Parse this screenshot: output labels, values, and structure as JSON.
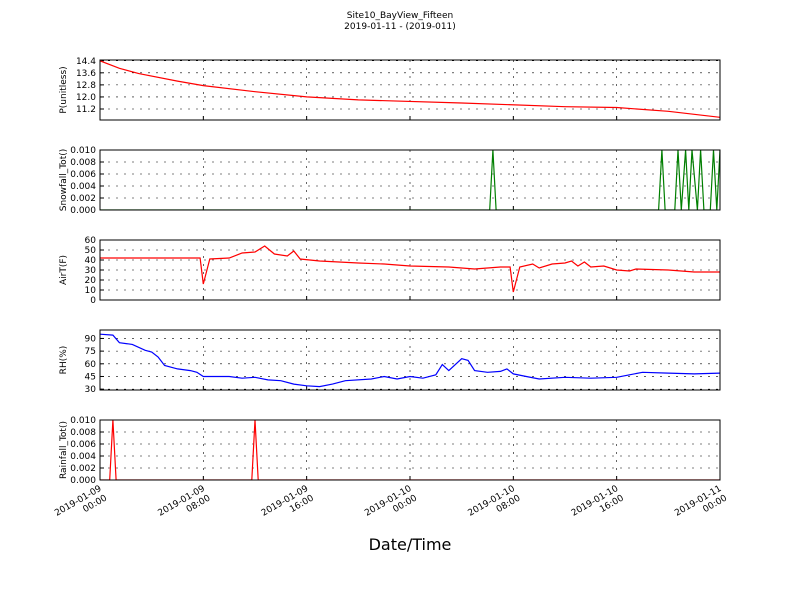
{
  "title": "Site10_BayView_Fifteen",
  "subtitle": "2019-01-11 - (2019-011)",
  "xlabel": "Date/Time",
  "xlim": [
    "2019-01-09 00:00",
    "2019-01-11 00:00"
  ],
  "xticks": [
    "2019-01-09 00:00",
    "2019-01-09 08:00",
    "2019-01-09 16:00",
    "2019-01-10 00:00",
    "2019-01-10 08:00",
    "2019-01-10 16:00",
    "2019-01-11 00:00"
  ],
  "chart_data": [
    {
      "type": "line",
      "ylabel": "P(unitless)",
      "color": "#ff0000",
      "ylim": [
        10.47,
        14.45
      ],
      "yticks": [
        11.2,
        {
          "value": 12,
          "label": "12.0"
        },
        12.8,
        13.6,
        14.4
      ],
      "x": [
        "2019-01-09 00:00",
        "2019-01-09 01:30",
        "2019-01-09 03:00",
        "2019-01-09 06:00",
        "2019-01-09 08:00",
        "2019-01-09 12:00",
        "2019-01-09 16:00",
        "2019-01-09 20:00",
        "2019-01-10 04:00",
        "2019-01-10 12:00",
        "2019-01-10 16:00",
        "2019-01-10 20:00",
        "2019-01-11 00:00"
      ],
      "values": [
        14.4,
        13.9,
        13.55,
        13.05,
        12.75,
        12.35,
        12.0,
        11.8,
        11.6,
        11.35,
        11.3,
        11.05,
        10.65
      ]
    },
    {
      "type": "line",
      "ylabel": "Snowfall_Tot()",
      "color": "#007f00",
      "ylim": [
        0,
        0.01
      ],
      "yticks": [
        {
          "value": 0,
          "label": "0.000"
        },
        {
          "value": 0.002,
          "label": "0.002"
        },
        {
          "value": 0.004,
          "label": "0.004"
        },
        {
          "value": 0.006,
          "label": "0.006"
        },
        {
          "value": 0.008,
          "label": "0.008"
        },
        {
          "value": 0.01,
          "label": "0.010"
        }
      ],
      "x": [
        "2019-01-09 00:00",
        "2019-01-10 06:10",
        "2019-01-10 06:25",
        "2019-01-10 06:40",
        "2019-01-10 19:15",
        "2019-01-10 19:30",
        "2019-01-10 19:45",
        "2019-01-10 20:30",
        "2019-01-10 20:45",
        "2019-01-10 21:00",
        "2019-01-10 21:20",
        "2019-01-10 21:35",
        "2019-01-10 21:50",
        "2019-01-10 22:15",
        "2019-01-10 22:30",
        "2019-01-10 22:45",
        "2019-01-10 23:15",
        "2019-01-10 23:30",
        "2019-01-10 23:45",
        "2019-01-11 00:00"
      ],
      "values": [
        0,
        0,
        0.01,
        0,
        0,
        0.01,
        0,
        0,
        0.01,
        0,
        0.01,
        0,
        0.01,
        0,
        0.01,
        0,
        0,
        0.01,
        0,
        0.01
      ]
    },
    {
      "type": "line",
      "ylabel": "AirT(F)",
      "color": "#ff0000",
      "ylim": [
        0,
        60
      ],
      "yticks": [
        0,
        10,
        20,
        30,
        40,
        50,
        60
      ],
      "x": [
        "2019-01-09 00:00",
        "2019-01-09 03:00",
        "2019-01-09 07:45",
        "2019-01-09 08:00",
        "2019-01-09 08:30",
        "2019-01-09 10:00",
        "2019-01-09 11:00",
        "2019-01-09 12:00",
        "2019-01-09 12:45",
        "2019-01-09 13:30",
        "2019-01-09 14:30",
        "2019-01-09 15:00",
        "2019-01-09 15:30",
        "2019-01-09 17:00",
        "2019-01-09 20:00",
        "2019-01-09 22:00",
        "2019-01-10 00:00",
        "2019-01-10 03:00",
        "2019-01-10 05:00",
        "2019-01-10 07:00",
        "2019-01-10 07:45",
        "2019-01-10 08:00",
        "2019-01-10 08:30",
        "2019-01-10 09:30",
        "2019-01-10 10:00",
        "2019-01-10 11:00",
        "2019-01-10 12:00",
        "2019-01-10 12:30",
        "2019-01-10 13:00",
        "2019-01-10 13:30",
        "2019-01-10 14:00",
        "2019-01-10 15:00",
        "2019-01-10 16:00",
        "2019-01-10 17:00",
        "2019-01-10 17:30",
        "2019-01-10 20:00",
        "2019-01-10 22:00",
        "2019-01-11 00:00"
      ],
      "values": [
        42,
        42,
        42,
        16,
        41,
        42,
        47,
        48,
        54,
        46,
        44,
        49,
        41,
        39,
        37,
        36,
        34,
        33,
        31,
        33,
        33,
        8,
        33,
        36,
        32,
        36,
        37,
        39,
        34,
        38,
        33,
        34,
        30,
        29,
        31,
        30,
        28,
        28
      ]
    },
    {
      "type": "line",
      "ylabel": "RH(%)",
      "color": "#0000ff",
      "ylim": [
        29,
        100
      ],
      "yticks": [
        30,
        45,
        60,
        75,
        90
      ],
      "x": [
        "2019-01-09 00:00",
        "2019-01-09 01:00",
        "2019-01-09 01:30",
        "2019-01-09 02:30",
        "2019-01-09 03:30",
        "2019-01-09 04:00",
        "2019-01-09 04:30",
        "2019-01-09 05:00",
        "2019-01-09 06:00",
        "2019-01-09 07:00",
        "2019-01-09 07:30",
        "2019-01-09 08:00",
        "2019-01-09 10:00",
        "2019-01-09 11:00",
        "2019-01-09 12:00",
        "2019-01-09 13:00",
        "2019-01-09 14:00",
        "2019-01-09 15:00",
        "2019-01-09 16:00",
        "2019-01-09 17:00",
        "2019-01-09 18:00",
        "2019-01-09 19:00",
        "2019-01-09 21:00",
        "2019-01-09 22:00",
        "2019-01-09 23:00",
        "2019-01-10 00:00",
        "2019-01-10 01:00",
        "2019-01-10 02:00",
        "2019-01-10 02:30",
        "2019-01-10 03:00",
        "2019-01-10 04:00",
        "2019-01-10 04:30",
        "2019-01-10 05:00",
        "2019-01-10 06:00",
        "2019-01-10 07:00",
        "2019-01-10 07:30",
        "2019-01-10 08:00",
        "2019-01-10 09:00",
        "2019-01-10 10:00",
        "2019-01-10 12:00",
        "2019-01-10 14:00",
        "2019-01-10 16:00",
        "2019-01-10 17:00",
        "2019-01-10 18:00",
        "2019-01-10 20:00",
        "2019-01-10 22:00",
        "2019-01-11 00:00"
      ],
      "values": [
        95,
        94,
        85,
        83,
        76,
        74,
        68,
        58,
        54,
        52,
        50,
        45,
        45,
        43,
        44,
        41,
        40,
        36,
        34,
        33,
        36,
        40,
        42,
        45,
        42,
        45,
        43,
        47,
        59,
        52,
        66,
        64,
        52,
        50,
        51,
        54,
        48,
        45,
        42,
        44,
        43,
        44,
        47,
        50,
        49,
        48,
        49
      ]
    },
    {
      "type": "line",
      "ylabel": "Rainfall_Tot()",
      "color": "#ff0000",
      "ylim": [
        0,
        0.01
      ],
      "yticks": [
        {
          "value": 0,
          "label": "0.000"
        },
        {
          "value": 0.002,
          "label": "0.002"
        },
        {
          "value": 0.004,
          "label": "0.004"
        },
        {
          "value": 0.006,
          "label": "0.006"
        },
        {
          "value": 0.008,
          "label": "0.008"
        },
        {
          "value": 0.01,
          "label": "0.010"
        }
      ],
      "x": [
        "2019-01-09 00:00",
        "2019-01-09 00:45",
        "2019-01-09 01:00",
        "2019-01-09 01:15",
        "2019-01-09 11:45",
        "2019-01-09 12:00",
        "2019-01-09 12:15",
        "2019-01-11 00:00"
      ],
      "values": [
        0,
        0,
        0.01,
        0,
        0,
        0.01,
        0,
        0
      ]
    }
  ]
}
